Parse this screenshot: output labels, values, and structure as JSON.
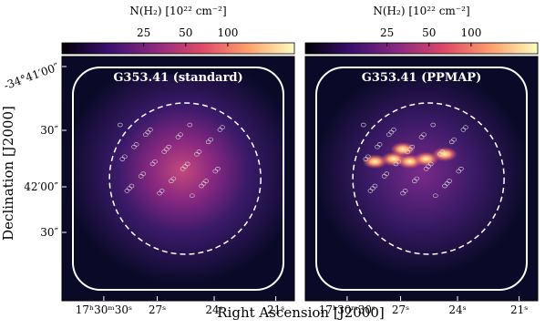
{
  "figure": {
    "x_label": "Right Ascension [J2000]",
    "y_label": "Declination [J2000]"
  },
  "chart_data": [
    {
      "type": "image",
      "label": "G353.41 (standard)",
      "colorbar": {
        "label": "N(H₂) [10²² cm⁻²]",
        "clim": [
          6.5,
          300
        ],
        "log": true,
        "ticks": [
          25,
          50,
          100
        ],
        "colors": [
          "#000004",
          "#3b0f70",
          "#8c2981",
          "#de4968",
          "#fe9f6d",
          "#fcfdbf"
        ]
      },
      "xticks": [
        "17ʰ30ᵐ30ˢ",
        "27ˢ",
        "24ˢ",
        "21ˢ"
      ],
      "yticks": [
        "-34°41′00″",
        "30″",
        "42′00″",
        "30″"
      ]
    },
    {
      "type": "image",
      "label": "G353.41 (PPMAP)",
      "colorbar": {
        "label": "N(H₂) [10²² cm⁻²]",
        "clim": [
          6.5,
          300
        ],
        "log": true,
        "ticks": [
          25,
          50,
          100
        ],
        "colors": [
          "#000004",
          "#3b0f70",
          "#8c2981",
          "#de4968",
          "#fe9f6d",
          "#fcfdbf"
        ]
      },
      "xticks": [
        "17ʰ30ᵐ30ˢ",
        "27ˢ",
        "24ˢ",
        "21ˢ"
      ]
    }
  ]
}
